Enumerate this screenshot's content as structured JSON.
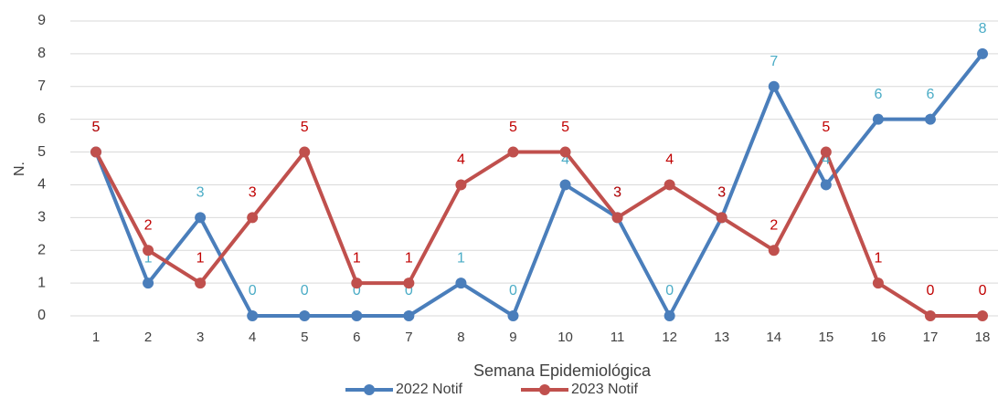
{
  "chart_data": {
    "type": "line",
    "x_label": "Semana Epidemiológica",
    "y_label": "N.",
    "categories": [
      1,
      2,
      3,
      4,
      5,
      6,
      7,
      8,
      9,
      10,
      11,
      12,
      13,
      14,
      15,
      16,
      17,
      18
    ],
    "series": [
      {
        "name": "2022 Notif",
        "color": "#4a7ebb",
        "label_color": "#4bacc6",
        "values": [
          5,
          1,
          3,
          0,
          0,
          0,
          0,
          1,
          0,
          4,
          3,
          0,
          3,
          7,
          4,
          6,
          6,
          8
        ]
      },
      {
        "name": "2023 Notif",
        "color": "#c0504d",
        "label_color": "#c00000",
        "values": [
          5,
          2,
          1,
          3,
          5,
          1,
          1,
          4,
          5,
          5,
          3,
          4,
          3,
          2,
          5,
          1,
          0,
          0
        ]
      }
    ],
    "ylim": [
      0,
      9
    ],
    "yticks": [
      0,
      1,
      2,
      3,
      4,
      5,
      6,
      7,
      8,
      9
    ],
    "grid": true,
    "legend": "bottom"
  }
}
